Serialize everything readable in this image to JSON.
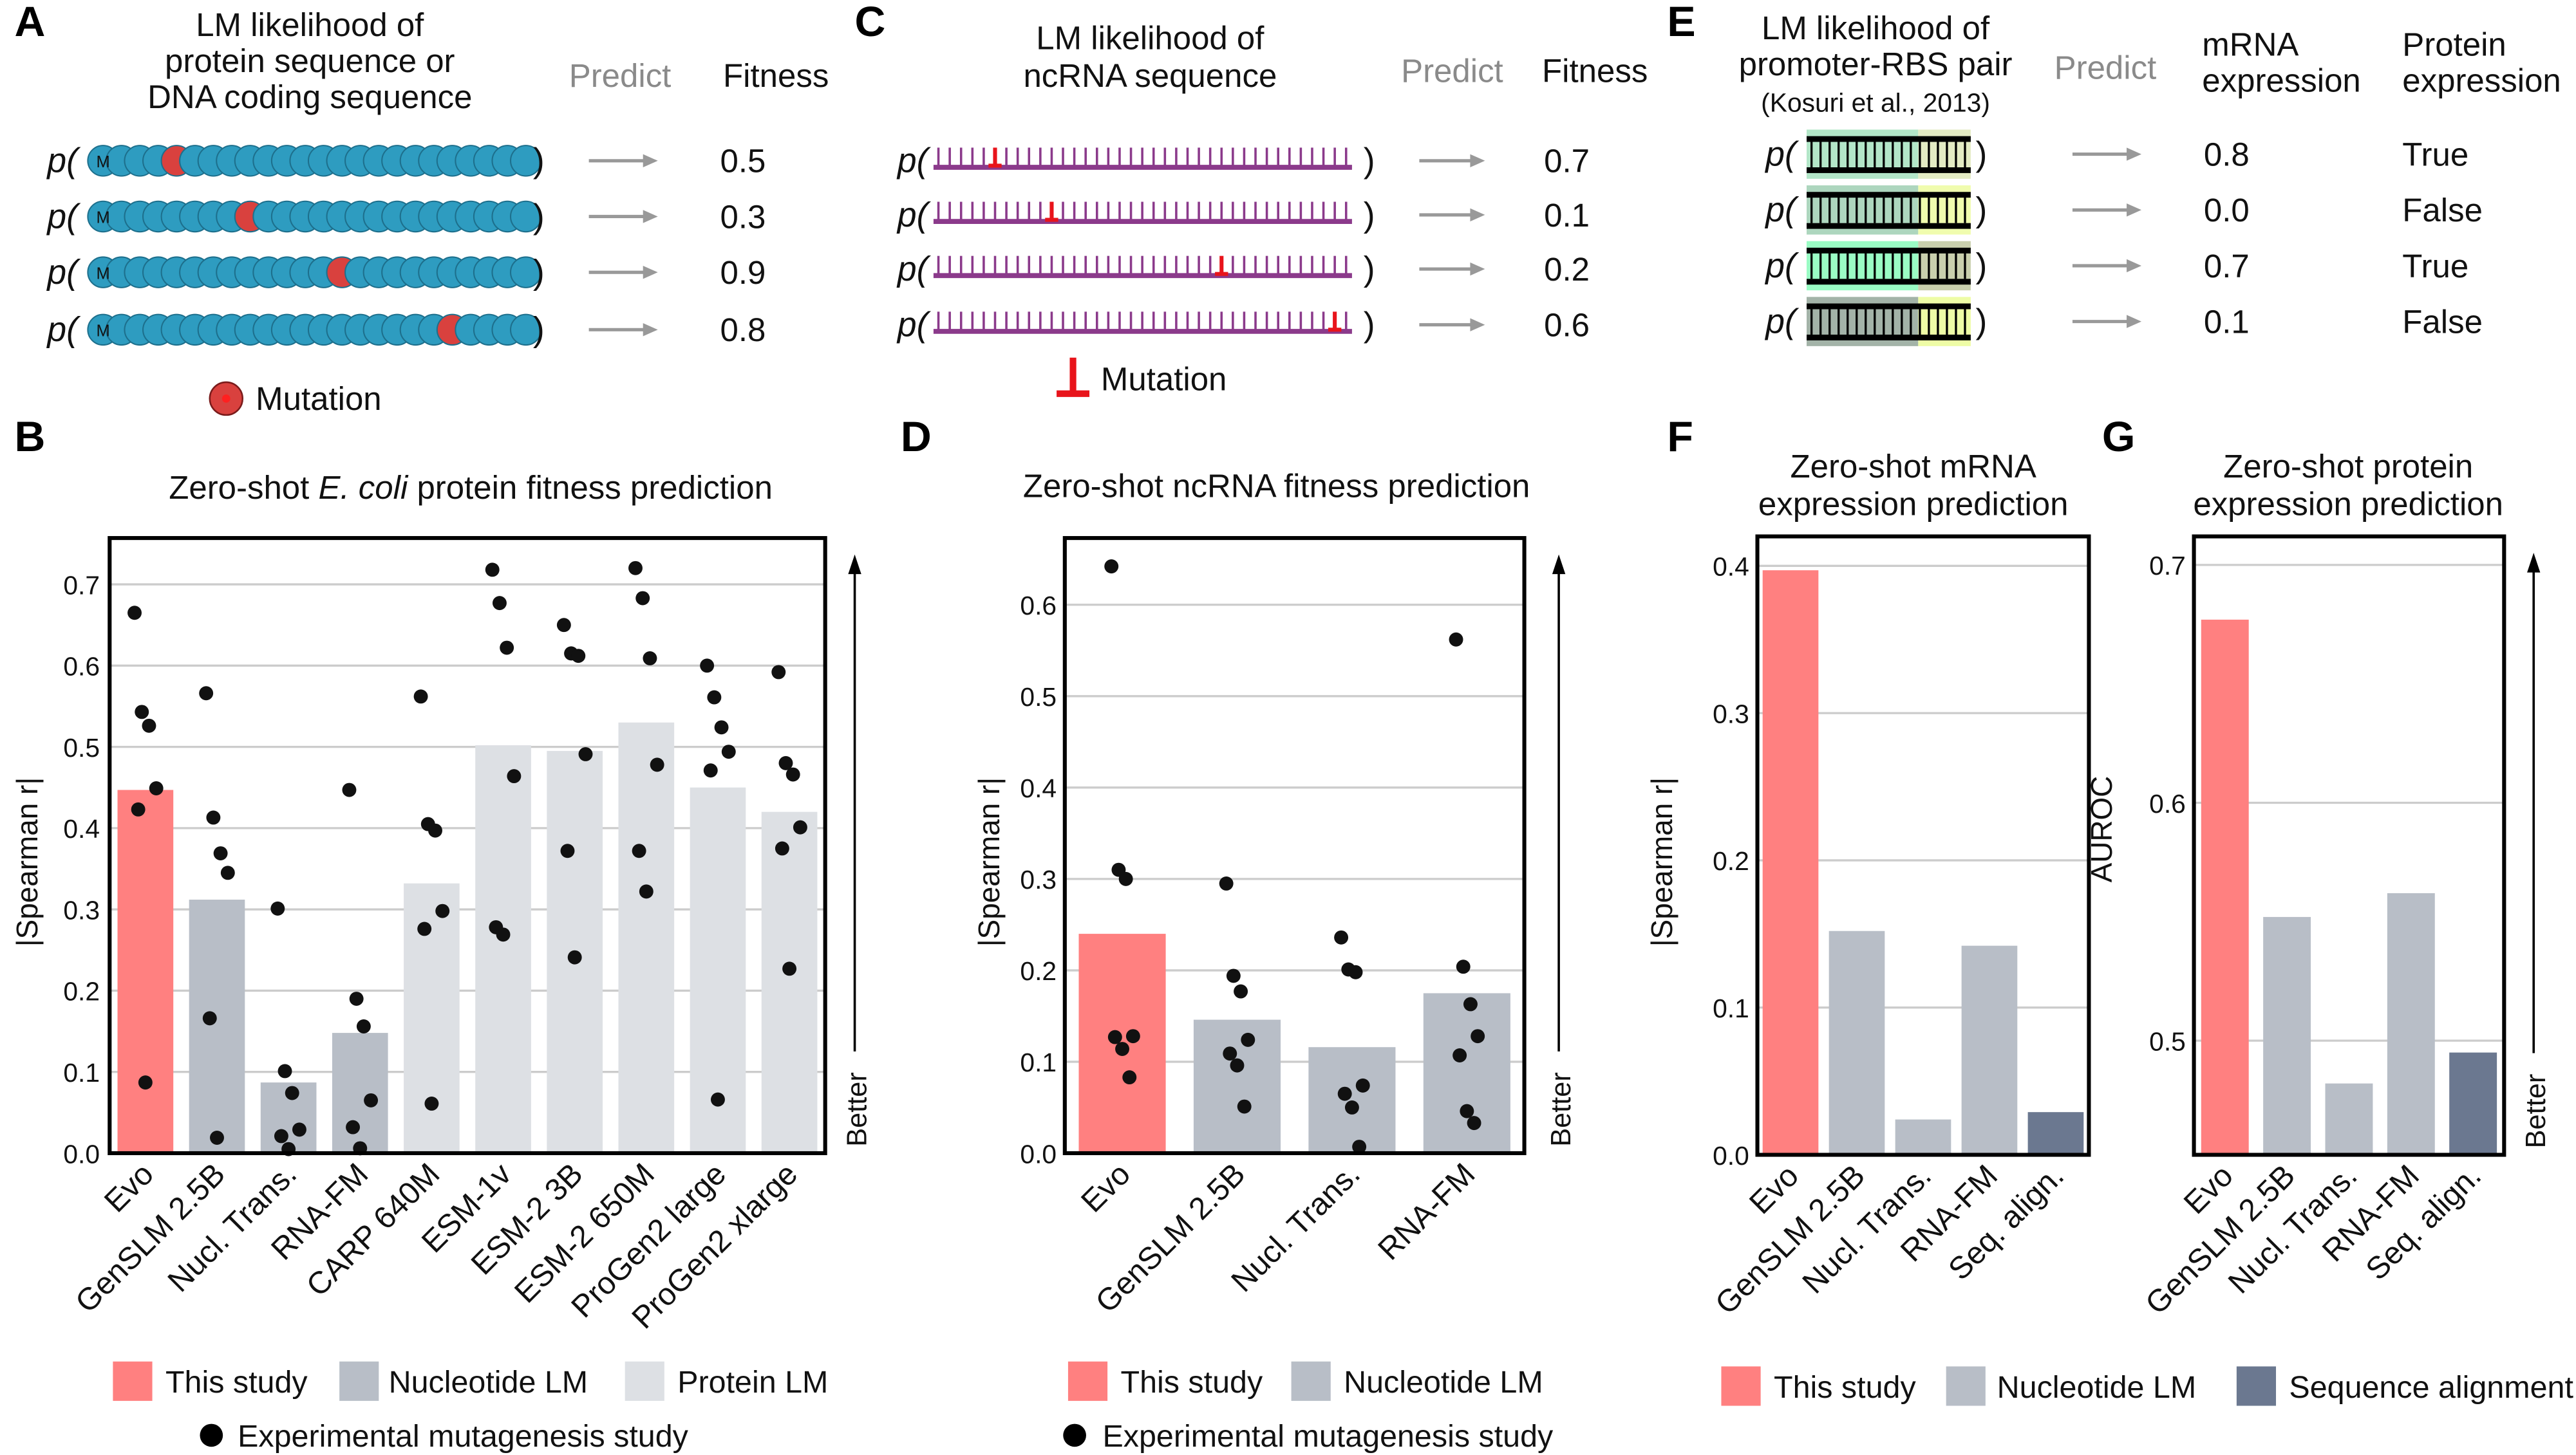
{
  "panel_letters": [
    "A",
    "B",
    "C",
    "D",
    "E",
    "F",
    "G"
  ],
  "panel_a": {
    "title_lines": [
      "LM likelihood of",
      "protein sequence or",
      "DNA coding sequence"
    ],
    "predict": "Predict",
    "fitness_header": "Fitness",
    "p_open": "p(",
    "p_close": ")",
    "start_label": "M",
    "fitness_values": [
      "0.5",
      "0.3",
      "0.9",
      "0.8"
    ],
    "legend_mutation": "Mutation",
    "bead_color": "#2E9CC0",
    "mutation_color": "#D9413E"
  },
  "panel_c": {
    "title_lines": [
      "LM likelihood of",
      "ncRNA sequence"
    ],
    "predict": "Predict",
    "fitness_header": "Fitness",
    "p_open": "p(",
    "p_close": ")",
    "fitness_values": [
      "0.7",
      "0.1",
      "0.2",
      "0.6"
    ],
    "legend_mutation": "Mutation",
    "rna_color": "#8B3A8B",
    "mutation_color": "#E8141B"
  },
  "panel_e": {
    "title_lines": [
      "LM likelihood of",
      "promoter-RBS pair",
      "(Kosuri et al., 2013)"
    ],
    "predict": "Predict",
    "mrna_header": [
      "mRNA",
      "expression"
    ],
    "protein_header": [
      "Protein",
      "expression"
    ],
    "p_open": "p(",
    "p_close": ")",
    "rows": [
      {
        "mrna": "0.8",
        "protein": "True",
        "promoter_color": "#B3E6C8",
        "rbs_color": "#E3EBC3"
      },
      {
        "mrna": "0.0",
        "protein": "False",
        "promoter_color": "#ADD6BE",
        "rbs_color": "#F0FCAE"
      },
      {
        "mrna": "0.7",
        "protein": "True",
        "promoter_color": "#9AFCC4",
        "rbs_color": "#C9CFAD"
      },
      {
        "mrna": "0.1",
        "protein": "False",
        "promoter_color": "#A3B3A8",
        "rbs_color": "#EEFCA6"
      }
    ]
  },
  "legend_bd": {
    "this_study": "This study",
    "nucleotide_lm": "Nucleotide LM",
    "protein_lm": "Protein LM",
    "experimental": "Experimental mutagenesis study"
  },
  "legend_fg": {
    "this_study": "This study",
    "nucleotide_lm": "Nucleotide LM",
    "sequence_alignment": "Sequence alignment"
  },
  "colors": {
    "this_study": "#FF8080",
    "nucleotide_lm": "#B8BEC7",
    "protein_lm": "#DDE0E4",
    "sequence_alignment": "#6B7890",
    "points": "#111111",
    "grid": "#CCCCCC"
  },
  "chart_data": [
    {
      "panel": "B",
      "type": "bar",
      "title_parts": [
        "Zero-shot ",
        "E. coli",
        " protein fitness prediction"
      ],
      "ylabel": "|Spearman r|",
      "better_label": "Better",
      "ylim": [
        0,
        0.757
      ],
      "yticks": [
        "0.0",
        "0.1",
        "0.2",
        "0.3",
        "0.4",
        "0.5",
        "0.6",
        "0.7"
      ],
      "grid": true,
      "categories": [
        "Evo",
        "GenSLM 2.5B",
        "Nucl. Trans.",
        "RNA-FM",
        "CARP 640M",
        "ESM-1v",
        "ESM-2 3B",
        "ESM-2 650M",
        "ProGen2 large",
        "ProGen2 xlarge"
      ],
      "groups": [
        "this_study",
        "nucleotide_lm",
        "nucleotide_lm",
        "nucleotide_lm",
        "protein_lm",
        "protein_lm",
        "protein_lm",
        "protein_lm",
        "protein_lm",
        "protein_lm"
      ],
      "values": [
        0.447,
        0.312,
        0.087,
        0.148,
        0.332,
        0.502,
        0.495,
        0.53,
        0.45,
        0.42
      ],
      "points": [
        [
          0.665,
          0.543,
          0.526,
          0.449,
          0.423,
          0.087
        ],
        [
          0.566,
          0.413,
          0.369,
          0.345,
          0.166,
          0.019
        ],
        [
          0.301,
          0.101,
          0.074,
          0.029,
          0.021,
          0.005
        ],
        [
          0.447,
          0.19,
          0.156,
          0.065,
          0.032,
          0.006
        ],
        [
          0.562,
          0.405,
          0.397,
          0.298,
          0.276,
          0.061
        ],
        [
          0.718,
          0.677,
          0.622,
          0.464,
          0.278,
          0.269
        ],
        [
          0.65,
          0.615,
          0.612,
          0.491,
          0.372,
          0.241
        ],
        [
          0.72,
          0.683,
          0.609,
          0.478,
          0.372,
          0.322
        ],
        [
          0.6,
          0.561,
          0.524,
          0.494,
          0.471,
          0.066
        ],
        [
          0.592,
          0.48,
          0.466,
          0.401,
          0.375,
          0.227
        ]
      ]
    },
    {
      "panel": "D",
      "type": "bar",
      "title_parts": [
        "Zero-shot ncRNA fitness prediction"
      ],
      "ylabel": "|Spearman r|",
      "better_label": "Better",
      "ylim": [
        0,
        0.673
      ],
      "yticks": [
        "0.0",
        "0.1",
        "0.2",
        "0.3",
        "0.4",
        "0.5",
        "0.6"
      ],
      "grid": true,
      "categories": [
        "Evo",
        "GenSLM 2.5B",
        "Nucl. Trans.",
        "RNA-FM"
      ],
      "groups": [
        "this_study",
        "nucleotide_lm",
        "nucleotide_lm",
        "nucleotide_lm"
      ],
      "values": [
        0.24,
        0.146,
        0.116,
        0.175
      ],
      "points": [
        [
          0.642,
          0.31,
          0.3,
          0.128,
          0.127,
          0.114,
          0.083
        ],
        [
          0.295,
          0.194,
          0.177,
          0.124,
          0.109,
          0.096,
          0.051
        ],
        [
          0.236,
          0.201,
          0.198,
          0.074,
          0.065,
          0.05,
          0.007
        ],
        [
          0.562,
          0.204,
          0.163,
          0.128,
          0.107,
          0.046,
          0.033
        ]
      ]
    },
    {
      "panel": "F",
      "type": "bar",
      "title_lines": [
        "Zero-shot mRNA",
        "expression prediction"
      ],
      "ylabel": "|Spearman r|",
      "ylim": [
        0,
        0.42
      ],
      "yticks": [
        "0.0",
        "0.1",
        "0.2",
        "0.3",
        "0.4"
      ],
      "grid": true,
      "categories": [
        "Evo",
        "GenSLM 2.5B",
        "Nucl. Trans.",
        "RNA-FM",
        "Seq. align."
      ],
      "groups": [
        "this_study",
        "nucleotide_lm",
        "nucleotide_lm",
        "nucleotide_lm",
        "sequence_alignment"
      ],
      "values": [
        0.397,
        0.152,
        0.024,
        0.142,
        0.029
      ]
    },
    {
      "panel": "G",
      "type": "bar",
      "title_lines": [
        "Zero-shot protein",
        "expression prediction"
      ],
      "ylabel": "AUROC",
      "better_label": "Better",
      "ylim": [
        0.452,
        0.712
      ],
      "yticks": [
        "0.5",
        "0.6",
        "0.7"
      ],
      "grid": true,
      "categories": [
        "Evo",
        "GenSLM 2.5B",
        "Nucl. Trans.",
        "RNA-FM",
        "Seq. align."
      ],
      "groups": [
        "this_study",
        "nucleotide_lm",
        "nucleotide_lm",
        "nucleotide_lm",
        "sequence_alignment"
      ],
      "values": [
        0.677,
        0.552,
        0.482,
        0.562,
        0.495
      ]
    }
  ]
}
